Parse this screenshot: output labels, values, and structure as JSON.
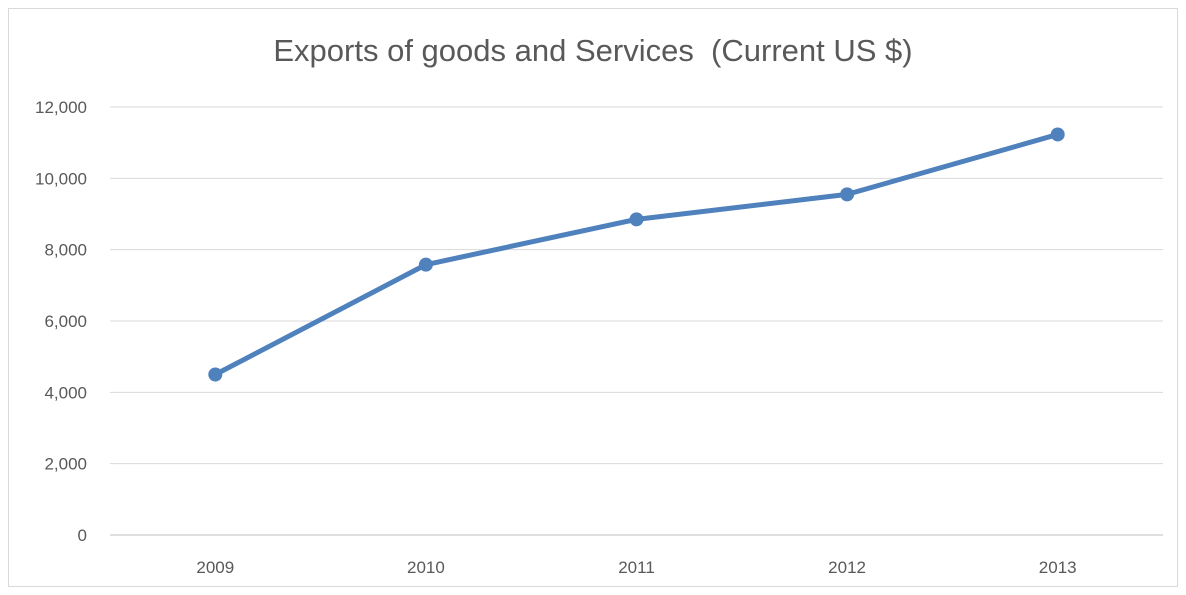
{
  "chart_data": {
    "type": "line",
    "title": "Exports of goods and Services  (Current US $)",
    "xlabel": "",
    "ylabel": "",
    "categories": [
      "2009",
      "2010",
      "2011",
      "2012",
      "2013"
    ],
    "series": [
      {
        "values": [
          4500,
          7580,
          8850,
          9550,
          11230
        ],
        "color": "#4f81bd"
      }
    ],
    "ylim": [
      0,
      12000
    ],
    "yticks": [
      0,
      2000,
      4000,
      6000,
      8000,
      10000,
      12000
    ],
    "ytick_labels": [
      "0",
      "2,000",
      "4,000",
      "6,000",
      "8,000",
      "10,000",
      "12,000"
    ],
    "grid": true,
    "legend": "none"
  }
}
